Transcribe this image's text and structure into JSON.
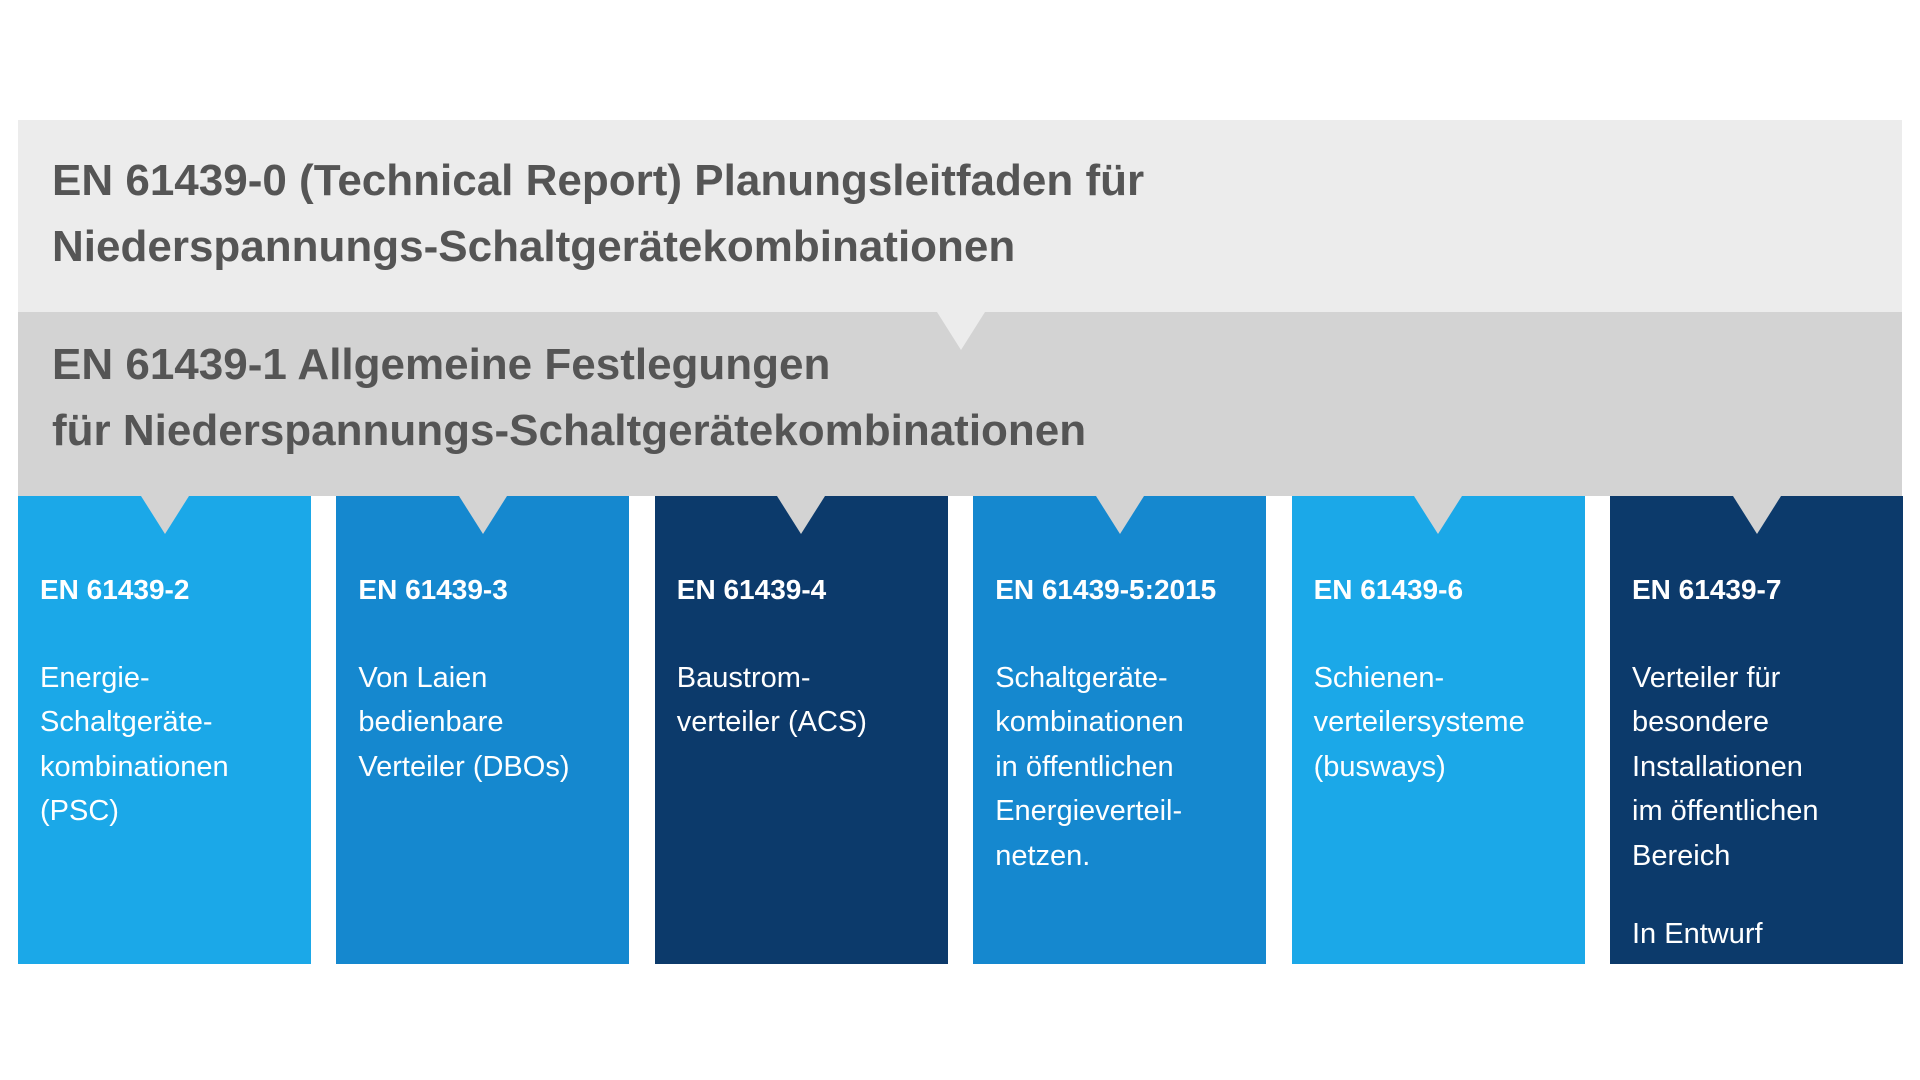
{
  "bars": [
    {
      "lines": [
        "EN 61439-0 (Technical Report) Planungsleitfaden für",
        "Niederspannungs-Schaltgerätekombinationen"
      ]
    },
    {
      "lines": [
        "EN 61439-1 Allgemeine Festlegungen",
        "für Niederspannungs-Schaltgerätekombinationen"
      ]
    }
  ],
  "columns": [
    {
      "title": "EN 61439-2",
      "lines": [
        "Energie-",
        "Schaltgeräte-",
        "kombinationen",
        "(PSC)"
      ],
      "color": "#1ba8e8"
    },
    {
      "title": "EN 61439-3",
      "lines": [
        "Von Laien",
        "bedienbare",
        "Verteiler (DBOs)"
      ],
      "color": "#1588cf"
    },
    {
      "title": "EN 61439-4",
      "lines": [
        "Baustrom-",
        "verteiler (ACS)"
      ],
      "color": "#0c3a6b"
    },
    {
      "title": "EN 61439-5:2015",
      "lines": [
        "Schaltgeräte-",
        "kombinationen",
        "in öffentlichen",
        "Energieverteil-",
        "netzen."
      ],
      "color": "#1588cf"
    },
    {
      "title": "EN 61439-6",
      "lines": [
        "Schienen-",
        "verteilersysteme",
        "(busways)"
      ],
      "color": "#1ba8e8"
    },
    {
      "title": "EN 61439-7",
      "lines": [
        "Verteiler für",
        "besondere",
        "Installationen",
        "im öffentlichen",
        "Bereich"
      ],
      "note": "In Entwurf",
      "color": "#0c3a6b"
    }
  ]
}
